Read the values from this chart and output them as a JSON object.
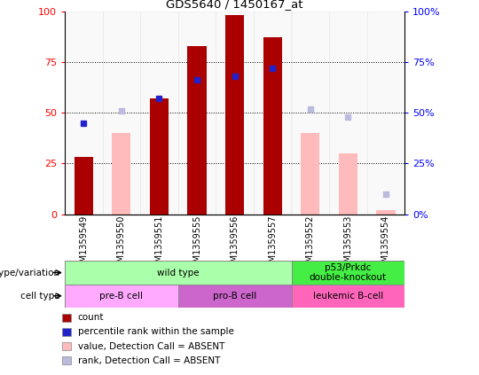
{
  "title": "GDS5640 / 1450167_at",
  "samples": [
    "GSM1359549",
    "GSM1359550",
    "GSM1359551",
    "GSM1359555",
    "GSM1359556",
    "GSM1359557",
    "GSM1359552",
    "GSM1359553",
    "GSM1359554"
  ],
  "count_values": [
    28,
    0,
    57,
    83,
    98,
    87,
    0,
    0,
    0
  ],
  "percentile_values": [
    45,
    0,
    57,
    66,
    68,
    72,
    0,
    0,
    0
  ],
  "absent_value_values": [
    0,
    40,
    0,
    0,
    0,
    0,
    40,
    30,
    2
  ],
  "absent_rank_values": [
    0,
    51,
    0,
    0,
    0,
    0,
    52,
    48,
    10
  ],
  "count_present": [
    true,
    false,
    true,
    true,
    true,
    true,
    false,
    false,
    false
  ],
  "percentile_present": [
    true,
    false,
    true,
    true,
    true,
    true,
    false,
    false,
    false
  ],
  "absent_value_present": [
    false,
    true,
    false,
    false,
    false,
    false,
    true,
    true,
    true
  ],
  "absent_rank_present": [
    false,
    true,
    false,
    false,
    false,
    false,
    true,
    true,
    true
  ],
  "ylim": [
    0,
    100
  ],
  "yticks": [
    0,
    25,
    50,
    75,
    100
  ],
  "color_count": "#aa0000",
  "color_percentile": "#2222cc",
  "color_absent_value": "#ffbbbb",
  "color_absent_rank": "#bbbbdd",
  "genotype_groups": [
    {
      "label": "wild type",
      "start": 0,
      "end": 6,
      "color": "#aaffaa"
    },
    {
      "label": "p53/Prkdc\ndouble-knockout",
      "start": 6,
      "end": 9,
      "color": "#44ee44"
    }
  ],
  "cell_type_groups": [
    {
      "label": "pre-B cell",
      "start": 0,
      "end": 3,
      "color": "#ffaaff"
    },
    {
      "label": "pro-B cell",
      "start": 3,
      "end": 6,
      "color": "#cc66cc"
    },
    {
      "label": "leukemic B-cell",
      "start": 6,
      "end": 9,
      "color": "#ff66bb"
    }
  ],
  "legend_items": [
    {
      "label": "count",
      "color": "#aa0000"
    },
    {
      "label": "percentile rank within the sample",
      "color": "#2222cc"
    },
    {
      "label": "value, Detection Call = ABSENT",
      "color": "#ffbbbb"
    },
    {
      "label": "rank, Detection Call = ABSENT",
      "color": "#bbbbdd"
    }
  ]
}
